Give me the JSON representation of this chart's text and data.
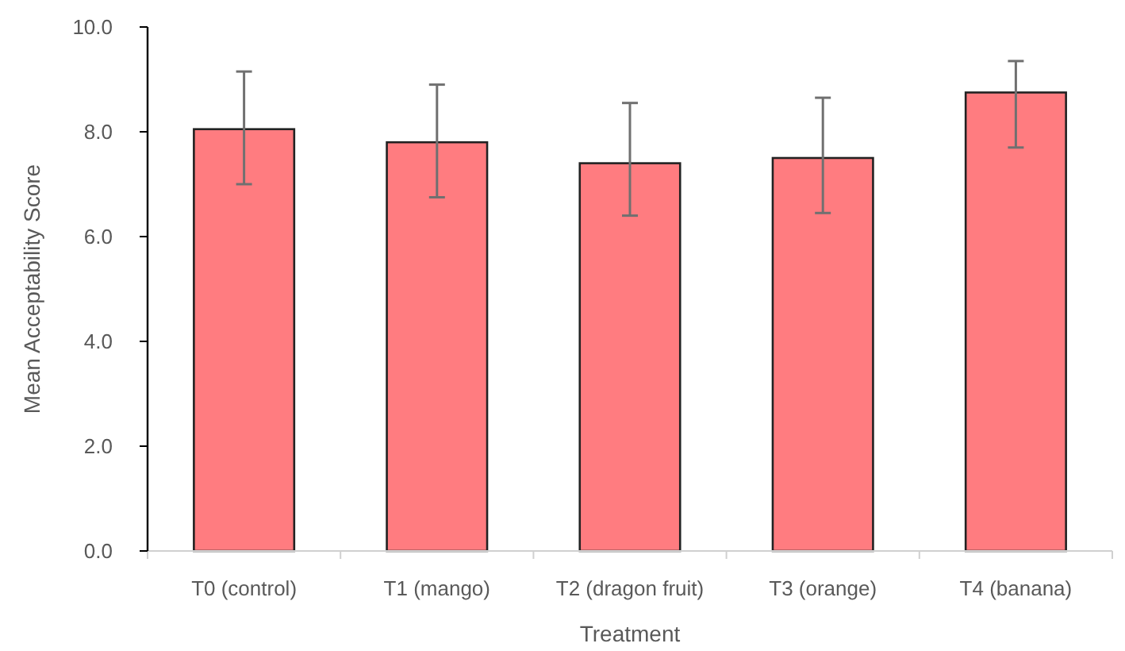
{
  "chart_data": {
    "type": "bar",
    "xlabel": "Treatment",
    "ylabel": "Mean Acceptability Score",
    "categories": [
      "T0 (control)",
      "T1 (mango)",
      "T2 (dragon fruit)",
      "T3 (orange)",
      "T4 (banana)"
    ],
    "values": [
      8.05,
      7.8,
      7.4,
      7.5,
      8.75
    ],
    "errors": [
      [
        7.0,
        9.15
      ],
      [
        6.75,
        8.9
      ],
      [
        6.4,
        8.55
      ],
      [
        6.45,
        8.65
      ],
      [
        7.7,
        9.35
      ]
    ],
    "color": "#ff7c80",
    "ylim": [
      0,
      10
    ],
    "yticks": [
      {
        "value": 0,
        "label": "0.0"
      },
      {
        "value": 2,
        "label": "2.0"
      },
      {
        "value": 4,
        "label": "4.0"
      },
      {
        "value": 6,
        "label": "6.0"
      },
      {
        "value": 8,
        "label": "8.0"
      },
      {
        "value": 10,
        "label": "10.0"
      }
    ]
  }
}
